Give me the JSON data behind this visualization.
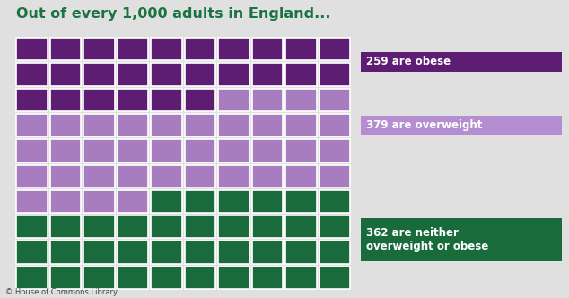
{
  "title": "Out of every 1,000 adults in England...",
  "title_color": "#1a7340",
  "background_color": "#e0e0e0",
  "grid_cols": 10,
  "grid_rows": 10,
  "obese_count": 259,
  "overweight_count": 379,
  "neither_count": 362,
  "color_obese": "#5c1d72",
  "color_overweight": "#a87dc0",
  "color_neither": "#1a6b3c",
  "label_obese": "259 are obese",
  "label_overweight": "379 are overweight",
  "label_neither": "362 are neither\noverweight or obese",
  "label_bg_obese": "#5c1d72",
  "label_bg_overweight": "#b48ed0",
  "label_bg_neither": "#1a6b3c",
  "label_text_color": "#ffffff",
  "footer": "© House of Commons Library"
}
